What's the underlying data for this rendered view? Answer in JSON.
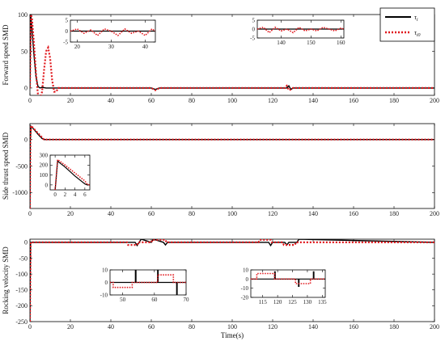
{
  "chart_data": [
    {
      "type": "line",
      "ylabel": "Forward speed SMD",
      "xlim": [
        0,
        200
      ],
      "ylim": [
        -10,
        100
      ],
      "xticks": [
        0,
        20,
        40,
        60,
        80,
        100,
        120,
        140,
        160,
        180,
        200
      ],
      "yticks": [
        0,
        50,
        100
      ],
      "legend": {
        "position": "top-right",
        "entries": [
          "τ_i",
          "τ_i0"
        ]
      },
      "series": [
        {
          "name": "τ_i",
          "color": "#000000",
          "style": "solid",
          "x": [
            0,
            0.4,
            1,
            2,
            3,
            4,
            5,
            6,
            8,
            60,
            62,
            64,
            127,
            128,
            129,
            130,
            200
          ],
          "y": [
            0,
            100,
            80,
            45,
            15,
            2,
            0,
            1,
            0,
            0,
            -2,
            0,
            0,
            3,
            -2,
            0,
            0
          ]
        },
        {
          "name": "τ_i0",
          "color": "#e0161b",
          "style": "dotted",
          "x": [
            0,
            0.5,
            1,
            2,
            3,
            4,
            5,
            6,
            7,
            8,
            9,
            10,
            11,
            12,
            13,
            14,
            16,
            60,
            62,
            64,
            126,
            127,
            128,
            129,
            130,
            200
          ],
          "y": [
            0,
            100,
            95,
            60,
            20,
            -10,
            -15,
            -5,
            25,
            50,
            55,
            40,
            10,
            -5,
            -5,
            0,
            0,
            0,
            -3,
            0,
            0,
            3,
            -3,
            -2,
            0,
            0
          ]
        }
      ],
      "insets": [
        {
          "xlim": [
            18,
            43
          ],
          "ylim": [
            -5,
            5
          ],
          "xticks": [
            20,
            30,
            40
          ],
          "yticks": [
            -5,
            0,
            5
          ],
          "series": [
            {
              "name": "τ_i",
              "x": [
                18,
                43
              ],
              "y": [
                0,
                0
              ]
            },
            {
              "name": "τ_i0",
              "x": [
                18,
                20,
                22,
                24,
                26,
                28,
                30,
                32,
                34,
                36,
                38,
                40,
                42,
                43
              ],
              "y": [
                0,
                1,
                -1,
                0.5,
                -2,
                1,
                0,
                -2,
                1,
                -1,
                0,
                -2,
                1,
                0
              ]
            }
          ]
        },
        {
          "xlim": [
            132,
            161
          ],
          "ylim": [
            -5,
            5
          ],
          "xticks": [
            140,
            150,
            160
          ],
          "yticks": [
            -5,
            0,
            5
          ],
          "series": [
            {
              "name": "τ_i",
              "x": [
                132,
                161
              ],
              "y": [
                0,
                0
              ]
            },
            {
              "name": "τ_i0",
              "x": [
                132,
                134,
                136,
                138,
                140,
                142,
                144,
                146,
                148,
                150,
                152,
                154,
                156,
                158,
                160,
                161
              ],
              "y": [
                0,
                1,
                -2,
                1,
                -1,
                0,
                -2,
                1,
                -1,
                0,
                -1,
                1,
                0,
                -1,
                0.5,
                0
              ]
            }
          ]
        }
      ]
    },
    {
      "type": "line",
      "ylabel": "Side thrust speed SMD",
      "xlim": [
        0,
        200
      ],
      "ylim": [
        -1300,
        300
      ],
      "xticks": [
        0,
        20,
        40,
        60,
        80,
        100,
        120,
        140,
        160,
        180,
        200
      ],
      "yticks": [
        -1000,
        -500,
        0
      ],
      "series": [
        {
          "name": "τ_i",
          "color": "#000000",
          "style": "solid",
          "x": [
            0,
            0.2,
            0.5,
            2,
            4,
            6,
            7,
            200
          ],
          "y": [
            -1300,
            0,
            250,
            190,
            100,
            20,
            0,
            0
          ]
        },
        {
          "name": "τ_i0",
          "color": "#e0161b",
          "style": "dotted",
          "x": [
            0,
            0.2,
            0.5,
            2,
            4,
            6,
            7,
            200
          ],
          "y": [
            -1300,
            0,
            260,
            200,
            120,
            40,
            0,
            0
          ]
        }
      ],
      "insets": [
        {
          "xlim": [
            -1,
            7
          ],
          "ylim": [
            -50,
            300
          ],
          "xticks": [
            0,
            2,
            4,
            6
          ],
          "yticks": [
            0,
            100,
            200,
            300
          ],
          "series": [
            {
              "name": "τ_i",
              "x": [
                0,
                0.1,
                0.5,
                2,
                4,
                6,
                6.5,
                7
              ],
              "y": [
                -50,
                0,
                240,
                180,
                90,
                10,
                0,
                0
              ]
            },
            {
              "name": "τ_i0",
              "x": [
                0,
                0.1,
                0.5,
                2,
                4,
                6,
                6.5,
                7
              ],
              "y": [
                -50,
                0,
                255,
                200,
                120,
                40,
                5,
                0
              ]
            }
          ]
        }
      ]
    },
    {
      "type": "line",
      "ylabel": "Rocking velocity SMD",
      "xlabel": "Time(s)",
      "xlim": [
        0,
        200
      ],
      "ylim": [
        -250,
        10
      ],
      "xticks": [
        0,
        20,
        40,
        60,
        80,
        100,
        120,
        140,
        160,
        180,
        200
      ],
      "yticks": [
        -250,
        -200,
        -150,
        -100,
        -50,
        0
      ],
      "series": [
        {
          "name": "τ_i",
          "color": "#000000",
          "style": "solid",
          "x": [
            0,
            0.3,
            1,
            52,
            53,
            54,
            55,
            60,
            61,
            66,
            67,
            68,
            118,
            119,
            120,
            126,
            127,
            128,
            132,
            133,
            200
          ],
          "y": [
            -250,
            0,
            0,
            0,
            -10,
            0,
            10,
            0,
            10,
            0,
            -8,
            0,
            0,
            -10,
            0,
            0,
            -8,
            0,
            0,
            10,
            0
          ]
        },
        {
          "name": "τ_i0",
          "color": "#e0161b",
          "style": "dotted",
          "x": [
            0,
            0.3,
            1,
            48,
            48.5,
            53,
            53.5,
            60,
            60.5,
            67,
            67.5,
            113,
            113.5,
            119,
            119.5,
            125,
            125.5,
            131,
            131.5,
            200
          ],
          "y": [
            -250,
            0,
            0,
            0,
            -8,
            -8,
            0,
            0,
            8,
            8,
            0,
            0,
            8,
            8,
            0,
            0,
            -8,
            -8,
            0,
            0
          ]
        }
      ],
      "insets": [
        {
          "xlim": [
            46,
            70
          ],
          "ylim": [
            -10,
            10
          ],
          "xticks": [
            50,
            60,
            70
          ],
          "yticks": [
            -10,
            0,
            10
          ],
          "series": [
            {
              "name": "τ_i",
              "x": [
                46,
                54,
                54,
                54.2,
                54.2,
                61,
                61,
                61.2,
                61.2,
                67,
                67,
                67.2,
                67.2,
                70
              ],
              "y": [
                0,
                0,
                12,
                12,
                0,
                0,
                10,
                10,
                0,
                0,
                -10,
                -10,
                0,
                0
              ]
            },
            {
              "name": "τ_i0",
              "x": [
                46,
                47,
                47,
                53,
                53,
                61,
                61,
                66,
                66,
                70
              ],
              "y": [
                0,
                0,
                -4,
                -4,
                0,
                0,
                6,
                6,
                0,
                0
              ]
            }
          ]
        },
        {
          "xlim": [
            111,
            136
          ],
          "ylim": [
            -20,
            10
          ],
          "xticks": [
            115,
            120,
            125,
            130,
            135
          ],
          "yticks": [
            -20,
            -10,
            0,
            10
          ],
          "series": [
            {
              "name": "τ_i",
              "x": [
                111,
                119,
                119,
                119.2,
                119.2,
                127,
                127,
                127.2,
                127.2,
                132,
                132,
                132.2,
                132.2,
                136
              ],
              "y": [
                0,
                0,
                8,
                8,
                0,
                0,
                -8,
                -8,
                0,
                0,
                8,
                8,
                0,
                0
              ]
            },
            {
              "name": "τ_i0",
              "x": [
                111,
                113,
                113,
                119,
                119,
                126,
                126,
                131,
                131,
                136
              ],
              "y": [
                0,
                0,
                6,
                6,
                0,
                0,
                -5,
                -5,
                0,
                0
              ]
            }
          ]
        }
      ]
    }
  ],
  "legend_labels": {
    "main": "τ",
    "main_sub": "i",
    "ref": "τ",
    "ref_sub": "i0"
  },
  "colors": {
    "series_black": "#000000",
    "series_red": "#e0161b"
  }
}
